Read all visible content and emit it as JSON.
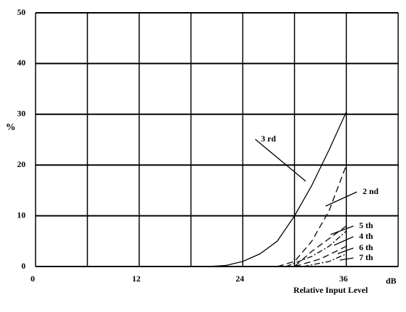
{
  "chart_data": {
    "type": "line",
    "ylabel": "%",
    "xlabel": "Relative Input Level",
    "x_unit": "dB",
    "xlim": [
      0,
      42
    ],
    "ylim": [
      0,
      50
    ],
    "xticks": [
      0,
      12,
      24,
      36
    ],
    "minor_xticks": [
      6,
      18,
      30,
      42
    ],
    "yticks": [
      0,
      10,
      20,
      30,
      40,
      50
    ],
    "grid": true,
    "series": [
      {
        "name": "3 rd",
        "color": "#000000",
        "dash": "solid",
        "x": [
          20,
          22,
          24,
          26,
          28,
          30,
          32,
          34,
          36
        ],
        "values": [
          0,
          0.2,
          1,
          2.5,
          5,
          10,
          16,
          23,
          30.5
        ]
      },
      {
        "name": "2 nd",
        "color": "#000000",
        "dash": "dashed",
        "x": [
          28,
          30,
          32,
          34,
          36
        ],
        "values": [
          0,
          1,
          5,
          11,
          20
        ]
      },
      {
        "name": "5 th",
        "color": "#000000",
        "dash": "dashed",
        "x": [
          30,
          32,
          34,
          36
        ],
        "values": [
          0,
          3,
          5.5,
          8
        ]
      },
      {
        "name": "4 th",
        "color": "#000000",
        "dash": "dashdot",
        "x": [
          29,
          32,
          34,
          36
        ],
        "values": [
          0,
          2,
          4,
          7
        ]
      },
      {
        "name": "6 th",
        "color": "#000000",
        "dash": "dashed",
        "x": [
          30,
          33,
          36
        ],
        "values": [
          0,
          1.5,
          4
        ]
      },
      {
        "name": "7 th",
        "color": "#000000",
        "dash": "dashdot",
        "x": [
          31,
          34,
          36
        ],
        "values": [
          0,
          1,
          2.5
        ]
      }
    ]
  }
}
